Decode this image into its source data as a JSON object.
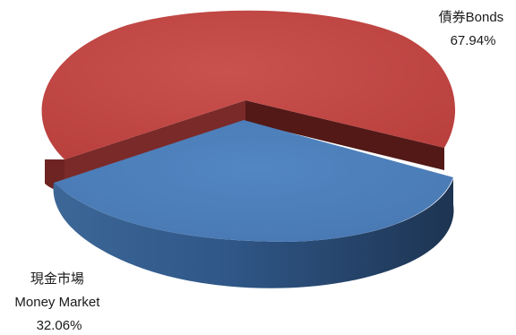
{
  "chart_data": {
    "type": "pie",
    "style": "3d-exploded",
    "slices": [
      {
        "label_zh": "債券",
        "label_en": "Bonds",
        "value": 67.94,
        "display": "67.94%",
        "color": "#c0504d"
      },
      {
        "label_zh": "現金市場",
        "label_en": "Money Market",
        "value": 32.06,
        "display": "32.06%",
        "color": "#4f81bd"
      }
    ],
    "legend": "none"
  }
}
